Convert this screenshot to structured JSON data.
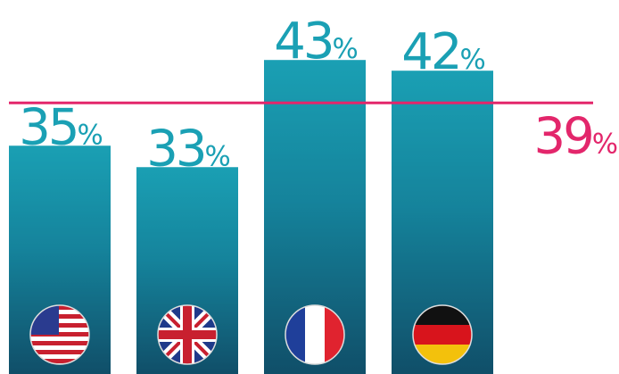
{
  "chart_data": {
    "type": "bar",
    "categories": [
      null,
      null,
      null,
      null
    ],
    "values": [
      35,
      33,
      43,
      42
    ],
    "value_labels": [
      "35%",
      "33%",
      "43%",
      "42%"
    ],
    "color": "#1aa0b4",
    "label_color": "#1aa0b4",
    "ylim": [
      13.7,
      48.6
    ],
    "reference_line": {
      "value": 39,
      "label": "39%",
      "color": "#e3266b"
    }
  }
}
